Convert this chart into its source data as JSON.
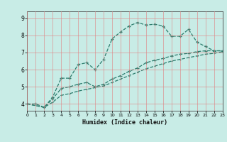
{
  "xlabel": "Humidex (Indice chaleur)",
  "xlim": [
    0,
    23
  ],
  "ylim": [
    3.6,
    9.4
  ],
  "bg_color": "#c8ece6",
  "grid_color": "#e08080",
  "line_color": "#2d7d6e",
  "x_ticks": [
    0,
    1,
    2,
    3,
    4,
    5,
    6,
    7,
    8,
    9,
    10,
    11,
    12,
    13,
    14,
    15,
    16,
    17,
    18,
    19,
    20,
    21,
    22,
    23
  ],
  "y_ticks": [
    4,
    5,
    6,
    7,
    8,
    9
  ],
  "line1_x": [
    0,
    1,
    2,
    3,
    4,
    5,
    6,
    7,
    8,
    9,
    10,
    11,
    12,
    13,
    14,
    15,
    16,
    17,
    18,
    19,
    20,
    21,
    22,
    23
  ],
  "line1_y": [
    4.0,
    4.0,
    3.8,
    4.4,
    5.5,
    5.5,
    6.3,
    6.4,
    6.0,
    6.6,
    7.8,
    8.2,
    8.55,
    8.75,
    8.6,
    8.65,
    8.55,
    7.95,
    7.95,
    8.35,
    7.6,
    7.35,
    7.1,
    7.1
  ],
  "line2_x": [
    0,
    2,
    3,
    4,
    5,
    6,
    7,
    8,
    9,
    10,
    11,
    12,
    13,
    14,
    15,
    16,
    17,
    18,
    19,
    20,
    21,
    22,
    23
  ],
  "line2_y": [
    4.0,
    3.8,
    4.3,
    4.9,
    5.0,
    5.15,
    5.25,
    5.0,
    5.15,
    5.45,
    5.65,
    5.9,
    6.1,
    6.4,
    6.55,
    6.65,
    6.8,
    6.9,
    6.95,
    7.05,
    7.1,
    7.1,
    7.1
  ],
  "line3_x": [
    0,
    2,
    3,
    4,
    5,
    6,
    7,
    8,
    9,
    10,
    11,
    12,
    13,
    14,
    15,
    16,
    17,
    18,
    19,
    20,
    21,
    22,
    23
  ],
  "line3_y": [
    4.0,
    3.8,
    4.1,
    4.5,
    4.6,
    4.75,
    4.85,
    4.95,
    5.05,
    5.25,
    5.45,
    5.65,
    5.85,
    6.05,
    6.2,
    6.35,
    6.5,
    6.6,
    6.7,
    6.8,
    6.9,
    6.95,
    7.05
  ]
}
